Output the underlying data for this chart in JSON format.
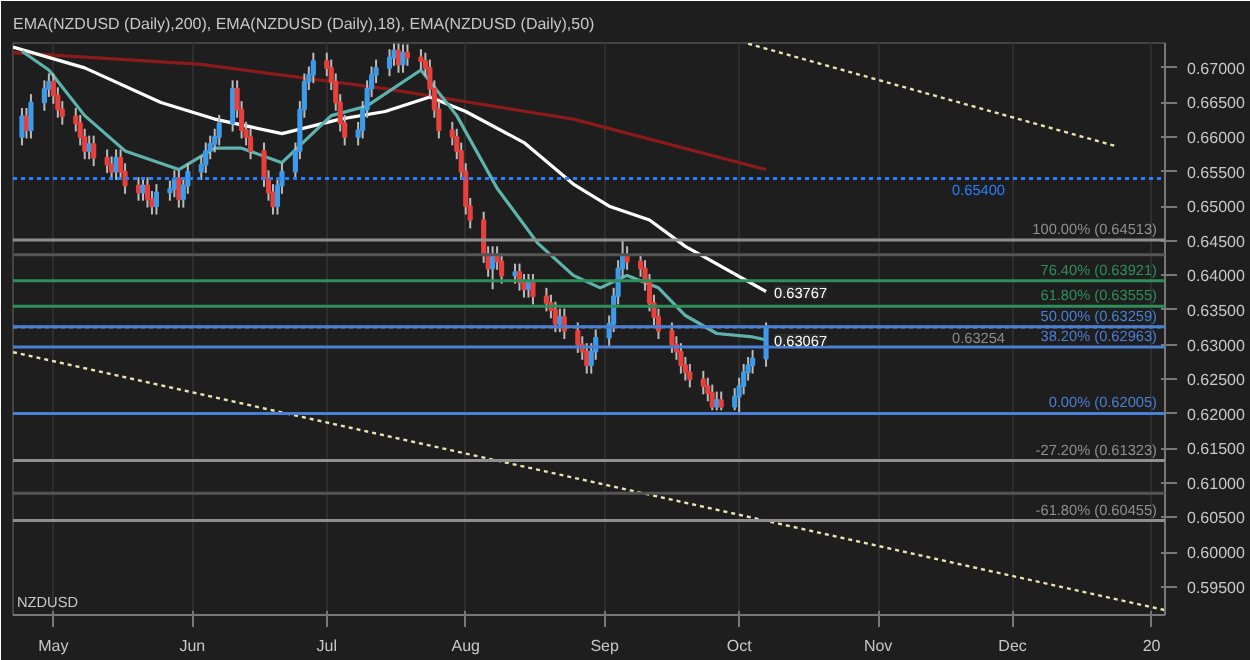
{
  "chart_data": {
    "type": "candlestick",
    "title": "EMA(NZDUSD (Daily),200), EMA(NZDUSD (Daily),18), EMA(NZDUSD (Daily),50)",
    "x": [
      "2019-04-24",
      "2019-04-25",
      "2019-04-26",
      "2019-04-29",
      "2019-04-30",
      "2019-05-01",
      "2019-05-02",
      "2019-05-03",
      "2019-05-06",
      "2019-05-07",
      "2019-05-08",
      "2019-05-09",
      "2019-05-10",
      "2019-05-13",
      "2019-05-14",
      "2019-05-15",
      "2019-05-16",
      "2019-05-17",
      "2019-05-20",
      "2019-05-21",
      "2019-05-22",
      "2019-05-23",
      "2019-05-24",
      "2019-05-27",
      "2019-05-28",
      "2019-05-29",
      "2019-05-30",
      "2019-05-31",
      "2019-06-03",
      "2019-06-04",
      "2019-06-05",
      "2019-06-06",
      "2019-06-07",
      "2019-06-10",
      "2019-06-11",
      "2019-06-12",
      "2019-06-13",
      "2019-06-14",
      "2019-06-17",
      "2019-06-18",
      "2019-06-19",
      "2019-06-20",
      "2019-06-21",
      "2019-06-24",
      "2019-06-25",
      "2019-06-26",
      "2019-06-27",
      "2019-06-28",
      "2019-07-01",
      "2019-07-02",
      "2019-07-03",
      "2019-07-04",
      "2019-07-05",
      "2019-07-08",
      "2019-07-09",
      "2019-07-10",
      "2019-07-11",
      "2019-07-12",
      "2019-07-15",
      "2019-07-16",
      "2019-07-17",
      "2019-07-18",
      "2019-07-19",
      "2019-07-22",
      "2019-07-23",
      "2019-07-24",
      "2019-07-25",
      "2019-07-26",
      "2019-07-29",
      "2019-07-30",
      "2019-07-31",
      "2019-08-01",
      "2019-08-02",
      "2019-08-05",
      "2019-08-06",
      "2019-08-07",
      "2019-08-08",
      "2019-08-09",
      "2019-08-12",
      "2019-08-13",
      "2019-08-14",
      "2019-08-15",
      "2019-08-16",
      "2019-08-19",
      "2019-08-20",
      "2019-08-21",
      "2019-08-22",
      "2019-08-23",
      "2019-08-26",
      "2019-08-27",
      "2019-08-28",
      "2019-08-29",
      "2019-08-30",
      "2019-09-02",
      "2019-09-03",
      "2019-09-04",
      "2019-09-05",
      "2019-09-06",
      "2019-09-09",
      "2019-09-10",
      "2019-09-11",
      "2019-09-12",
      "2019-09-13",
      "2019-09-16",
      "2019-09-17",
      "2019-09-18",
      "2019-09-19",
      "2019-09-20",
      "2019-09-23",
      "2019-09-24",
      "2019-09-25",
      "2019-09-26",
      "2019-09-27",
      "2019-09-30",
      "2019-10-01",
      "2019-10-02",
      "2019-10-03",
      "2019-10-04",
      "2019-10-07"
    ],
    "ohlc": [
      [
        0.66,
        0.6642,
        0.6588,
        0.663
      ],
      [
        0.663,
        0.6642,
        0.6598,
        0.661
      ],
      [
        0.661,
        0.6662,
        0.6598,
        0.665
      ],
      [
        0.665,
        0.6682,
        0.6638,
        0.667
      ],
      [
        0.667,
        0.6692,
        0.6658,
        0.668
      ],
      [
        0.668,
        0.6692,
        0.6648,
        0.666
      ],
      [
        0.666,
        0.6672,
        0.6628,
        0.664
      ],
      [
        0.664,
        0.6652,
        0.6618,
        0.663
      ],
      [
        0.663,
        0.6642,
        0.6608,
        0.662
      ],
      [
        0.662,
        0.6632,
        0.6588,
        0.66
      ],
      [
        0.66,
        0.6612,
        0.6568,
        0.658
      ],
      [
        0.658,
        0.6602,
        0.6568,
        0.659
      ],
      [
        0.659,
        0.6602,
        0.6558,
        0.657
      ],
      [
        0.657,
        0.6582,
        0.6548,
        0.656
      ],
      [
        0.656,
        0.6572,
        0.6538,
        0.655
      ],
      [
        0.655,
        0.6582,
        0.6538,
        0.657
      ],
      [
        0.657,
        0.6582,
        0.6538,
        0.655
      ],
      [
        0.655,
        0.6562,
        0.6518,
        0.653
      ],
      [
        0.653,
        0.6542,
        0.6508,
        0.652
      ],
      [
        0.652,
        0.6542,
        0.6508,
        0.653
      ],
      [
        0.653,
        0.6542,
        0.6498,
        0.651
      ],
      [
        0.651,
        0.6522,
        0.6488,
        0.65
      ],
      [
        0.65,
        0.6532,
        0.6488,
        0.652
      ],
      [
        0.652,
        0.6537,
        0.6508,
        0.6525
      ],
      [
        0.6525,
        0.6552,
        0.6513,
        0.654
      ],
      [
        0.654,
        0.6552,
        0.6498,
        0.651
      ],
      [
        0.651,
        0.6542,
        0.6498,
        0.653
      ],
      [
        0.653,
        0.6562,
        0.6518,
        0.655
      ],
      [
        0.655,
        0.6572,
        0.6538,
        0.656
      ],
      [
        0.656,
        0.6592,
        0.6548,
        0.658
      ],
      [
        0.658,
        0.6602,
        0.6568,
        0.659
      ],
      [
        0.659,
        0.6612,
        0.6578,
        0.66
      ],
      [
        0.66,
        0.6632,
        0.6588,
        0.662
      ],
      [
        0.662,
        0.6682,
        0.6608,
        0.667
      ],
      [
        0.667,
        0.6682,
        0.6628,
        0.664
      ],
      [
        0.664,
        0.6652,
        0.6598,
        0.661
      ],
      [
        0.661,
        0.6622,
        0.6588,
        0.66
      ],
      [
        0.66,
        0.6612,
        0.6568,
        0.658
      ],
      [
        0.658,
        0.6592,
        0.6528,
        0.654
      ],
      [
        0.654,
        0.6552,
        0.6508,
        0.652
      ],
      [
        0.652,
        0.6532,
        0.6488,
        0.65
      ],
      [
        0.65,
        0.6542,
        0.6488,
        0.653
      ],
      [
        0.653,
        0.6562,
        0.6518,
        0.655
      ],
      [
        0.655,
        0.6592,
        0.6538,
        0.658
      ],
      [
        0.658,
        0.6652,
        0.6568,
        0.664
      ],
      [
        0.664,
        0.6692,
        0.6628,
        0.668
      ],
      [
        0.668,
        0.6702,
        0.6668,
        0.669
      ],
      [
        0.669,
        0.6722,
        0.6678,
        0.671
      ],
      [
        0.671,
        0.6722,
        0.6688,
        0.67
      ],
      [
        0.67,
        0.6712,
        0.6668,
        0.668
      ],
      [
        0.668,
        0.6692,
        0.6638,
        0.665
      ],
      [
        0.665,
        0.6662,
        0.6608,
        0.662
      ],
      [
        0.662,
        0.6632,
        0.6588,
        0.66
      ],
      [
        0.66,
        0.6622,
        0.6588,
        0.661
      ],
      [
        0.661,
        0.6652,
        0.6598,
        0.664
      ],
      [
        0.664,
        0.6682,
        0.6628,
        0.667
      ],
      [
        0.667,
        0.6702,
        0.6658,
        0.669
      ],
      [
        0.669,
        0.6712,
        0.6678,
        0.67
      ],
      [
        0.67,
        0.6727,
        0.6688,
        0.6715
      ],
      [
        0.6715,
        0.6735,
        0.6703,
        0.6725
      ],
      [
        0.6725,
        0.6735,
        0.6693,
        0.6705
      ],
      [
        0.6705,
        0.6734,
        0.6693,
        0.6722
      ],
      [
        0.6722,
        0.6734,
        0.6703,
        0.6715
      ],
      [
        0.6715,
        0.6727,
        0.6698,
        0.671
      ],
      [
        0.671,
        0.6722,
        0.6688,
        0.67
      ],
      [
        0.67,
        0.6712,
        0.6658,
        0.667
      ],
      [
        0.667,
        0.6682,
        0.6628,
        0.664
      ],
      [
        0.664,
        0.6652,
        0.6598,
        0.661
      ],
      [
        0.661,
        0.6622,
        0.6588,
        0.66
      ],
      [
        0.66,
        0.6612,
        0.6568,
        0.658
      ],
      [
        0.658,
        0.6592,
        0.6538,
        0.655
      ],
      [
        0.655,
        0.6562,
        0.6488,
        0.65
      ],
      [
        0.65,
        0.6512,
        0.6468,
        0.648
      ],
      [
        0.648,
        0.6492,
        0.6418,
        0.643
      ],
      [
        0.643,
        0.6442,
        0.6398,
        0.641
      ],
      [
        0.641,
        0.6442,
        0.638,
        0.643
      ],
      [
        0.643,
        0.6442,
        0.6408,
        0.642
      ],
      [
        0.642,
        0.6432,
        0.6388,
        0.64
      ],
      [
        0.64,
        0.6417,
        0.6388,
        0.6405
      ],
      [
        0.6405,
        0.6417,
        0.6378,
        0.639
      ],
      [
        0.639,
        0.6402,
        0.6368,
        0.638
      ],
      [
        0.638,
        0.6402,
        0.6368,
        0.639
      ],
      [
        0.639,
        0.6402,
        0.6358,
        0.637
      ],
      [
        0.637,
        0.6382,
        0.6348,
        0.636
      ],
      [
        0.636,
        0.6372,
        0.6338,
        0.635
      ],
      [
        0.635,
        0.6362,
        0.6318,
        0.633
      ],
      [
        0.633,
        0.6352,
        0.6318,
        0.634
      ],
      [
        0.634,
        0.6352,
        0.6308,
        0.632
      ],
      [
        0.632,
        0.6332,
        0.6288,
        0.63
      ],
      [
        0.63,
        0.6312,
        0.6278,
        0.629
      ],
      [
        0.629,
        0.6302,
        0.6258,
        0.627
      ],
      [
        0.627,
        0.6302,
        0.6258,
        0.629
      ],
      [
        0.629,
        0.6322,
        0.6278,
        0.631
      ],
      [
        0.631,
        0.6342,
        0.6298,
        0.633
      ],
      [
        0.633,
        0.6382,
        0.6318,
        0.637
      ],
      [
        0.637,
        0.6422,
        0.6358,
        0.641
      ],
      [
        0.641,
        0.64513,
        0.6398,
        0.643
      ],
      [
        0.643,
        0.6442,
        0.6408,
        0.642
      ],
      [
        0.642,
        0.6432,
        0.6398,
        0.641
      ],
      [
        0.641,
        0.6422,
        0.6378,
        0.639
      ],
      [
        0.639,
        0.6402,
        0.6348,
        0.636
      ],
      [
        0.636,
        0.6372,
        0.6328,
        0.634
      ],
      [
        0.634,
        0.6352,
        0.6308,
        0.632
      ],
      [
        0.632,
        0.6332,
        0.6288,
        0.63
      ],
      [
        0.63,
        0.6312,
        0.6278,
        0.629
      ],
      [
        0.629,
        0.6302,
        0.6258,
        0.627
      ],
      [
        0.627,
        0.6282,
        0.6248,
        0.626
      ],
      [
        0.626,
        0.6272,
        0.6238,
        0.625
      ],
      [
        0.625,
        0.6262,
        0.6228,
        0.624
      ],
      [
        0.624,
        0.6252,
        0.6218,
        0.623
      ],
      [
        0.623,
        0.6242,
        0.6205,
        0.621
      ],
      [
        0.621,
        0.6232,
        0.6205,
        0.622
      ],
      [
        0.622,
        0.6232,
        0.6205,
        0.621
      ],
      [
        0.621,
        0.6237,
        0.6205,
        0.6225
      ],
      [
        0.6225,
        0.6252,
        0.62005,
        0.624
      ],
      [
        0.624,
        0.6272,
        0.6228,
        0.626
      ],
      [
        0.626,
        0.6282,
        0.6248,
        0.627
      ],
      [
        0.627,
        0.6292,
        0.6258,
        0.628
      ],
      [
        0.628,
        0.6332,
        0.6268,
        0.6325
      ]
    ],
    "colors": [
      "#3d9be9",
      "#e8403c",
      "#3d9be9",
      "#3d9be9",
      "#3d9be9",
      "#e8403c",
      "#e8403c",
      "#e8403c",
      "#e8403c",
      "#e8403c",
      "#e8403c",
      "#3d9be9",
      "#e8403c",
      "#e8403c",
      "#e8403c",
      "#3d9be9",
      "#e8403c",
      "#e8403c",
      "#e8403c",
      "#3d9be9",
      "#e8403c",
      "#e8403c",
      "#3d9be9",
      "#3d9be9",
      "#3d9be9",
      "#e8403c",
      "#3d9be9",
      "#3d9be9",
      "#3d9be9",
      "#3d9be9",
      "#3d9be9",
      "#3d9be9",
      "#3d9be9",
      "#3d9be9",
      "#e8403c",
      "#e8403c",
      "#e8403c",
      "#e8403c",
      "#e8403c",
      "#e8403c",
      "#e8403c",
      "#3d9be9",
      "#3d9be9",
      "#3d9be9",
      "#3d9be9",
      "#3d9be9",
      "#3d9be9",
      "#3d9be9",
      "#e8403c",
      "#e8403c",
      "#e8403c",
      "#e8403c",
      "#e8403c",
      "#3d9be9",
      "#3d9be9",
      "#3d9be9",
      "#3d9be9",
      "#3d9be9",
      "#3d9be9",
      "#3d9be9",
      "#e8403c",
      "#3d9be9",
      "#e8403c",
      "#e8403c",
      "#e8403c",
      "#e8403c",
      "#e8403c",
      "#e8403c",
      "#e8403c",
      "#e8403c",
      "#e8403c",
      "#e8403c",
      "#e8403c",
      "#e8403c",
      "#e8403c",
      "#3d9be9",
      "#e8403c",
      "#e8403c",
      "#3d9be9",
      "#e8403c",
      "#e8403c",
      "#3d9be9",
      "#e8403c",
      "#e8403c",
      "#e8403c",
      "#e8403c",
      "#3d9be9",
      "#e8403c",
      "#e8403c",
      "#e8403c",
      "#e8403c",
      "#3d9be9",
      "#3d9be9",
      "#3d9be9",
      "#3d9be9",
      "#3d9be9",
      "#3d9be9",
      "#e8403c",
      "#e8403c",
      "#e8403c",
      "#e8403c",
      "#e8403c",
      "#e8403c",
      "#e8403c",
      "#e8403c",
      "#e8403c",
      "#e8403c",
      "#e8403c",
      "#e8403c",
      "#e8403c",
      "#e8403c",
      "#3d9be9",
      "#e8403c",
      "#3d9be9",
      "#3d9be9",
      "#3d9be9",
      "#3d9be9",
      "#3d9be9",
      "#3d9be9"
    ],
    "series": [
      {
        "type": "line",
        "color": "#8b1a1a",
        "x": [
          "2019-04-22",
          "2019-06-03",
          "2019-07-14",
          "2019-08-25",
          "2019-10-07"
        ],
        "values": [
          0.6722,
          0.6705,
          0.667,
          0.6626,
          0.6553
        ]
      },
      {
        "type": "line",
        "color": "#ffffff",
        "x": [
          "2019-04-22",
          "2019-05-08",
          "2019-05-25",
          "2019-06-06",
          "2019-06-21",
          "2019-07-04",
          "2019-07-14",
          "2019-07-24",
          "2019-08-01",
          "2019-08-14",
          "2019-08-25",
          "2019-09-02",
          "2019-09-11",
          "2019-09-19",
          "2019-10-07"
        ],
        "values": [
          0.673,
          0.67,
          0.665,
          0.6626,
          0.6605,
          0.6626,
          0.6637,
          0.6658,
          0.6637,
          0.6592,
          0.6532,
          0.65,
          0.648,
          0.6442,
          0.63767
        ]
      },
      {
        "type": "line",
        "color": "#5fb3ad",
        "x": [
          "2019-04-24",
          "2019-04-30",
          "2019-05-08",
          "2019-05-17",
          "2019-05-29",
          "2019-06-06",
          "2019-06-12",
          "2019-06-21",
          "2019-07-02",
          "2019-07-10",
          "2019-07-22",
          "2019-07-30",
          "2019-08-08",
          "2019-08-17",
          "2019-08-25",
          "2019-08-31",
          "2019-09-06",
          "2019-09-13",
          "2019-09-19",
          "2019-09-26",
          "2019-10-04",
          "2019-10-07"
        ],
        "values": [
          0.6724,
          0.6697,
          0.6631,
          0.658,
          0.6553,
          0.6584,
          0.6584,
          0.6563,
          0.6631,
          0.6645,
          0.6697,
          0.6631,
          0.6526,
          0.6447,
          0.64,
          0.6382,
          0.64,
          0.6382,
          0.6342,
          0.6316,
          0.6311,
          0.63067
        ]
      },
      {
        "type": "line",
        "color": "#e8e6b0",
        "line_style": "dotted",
        "x": [
          "2019-04-22",
          "2020-01-04"
        ],
        "values": [
          0.6289,
          0.5916
        ]
      },
      {
        "type": "line",
        "color": "#e8e6b0",
        "line_style": "dotted",
        "x": [
          "2019-10-03",
          "2019-12-24"
        ],
        "values": [
          0.6735,
          0.6587
        ]
      }
    ],
    "ref_lines": [
      {
        "axis": "y",
        "value": 0.654,
        "label": "0.65400",
        "color": "#2a7fff",
        "line_style": "dotted"
      },
      {
        "axis": "y",
        "value": 0.63254,
        "label": "0.63254",
        "color": "#8a8a8a",
        "line_style": "dotted"
      },
      {
        "axis": "y",
        "value": 0.643,
        "label": null,
        "color": "#555555"
      },
      {
        "axis": "y",
        "value": 0.6085,
        "label": null,
        "color": "#555555"
      },
      {
        "axis": "y",
        "value": 0.64513,
        "label": "100.00% (0.64513)",
        "color": "#8f8f8f"
      },
      {
        "axis": "y",
        "value": 0.63921,
        "label": "76.40% (0.63921)",
        "color": "#2f8f5b"
      },
      {
        "axis": "y",
        "value": 0.63555,
        "label": "61.80% (0.63555)",
        "color": "#2f8f5b"
      },
      {
        "axis": "y",
        "value": 0.63259,
        "label": "50.00% (0.63259)",
        "color": "#4a7fd6"
      },
      {
        "axis": "y",
        "value": 0.62963,
        "label": "38.20% (0.62963)",
        "color": "#4a7fd6"
      },
      {
        "axis": "y",
        "value": 0.62005,
        "label": "0.00% (0.62005)",
        "color": "#4a7fd6"
      },
      {
        "axis": "y",
        "value": 0.61323,
        "label": "-27.20% (0.61323)",
        "color": "#8f8f8f"
      },
      {
        "axis": "y",
        "value": 0.60455,
        "label": "-61.80% (0.60455)",
        "color": "#8f8f8f"
      }
    ],
    "annotations": [
      "NZDUSD",
      {
        "text": "0.63767",
        "x": "2019-10-07",
        "y": 0.63767
      },
      {
        "text": "0.63067",
        "x": "2019-10-07",
        "y": 0.63067
      }
    ],
    "xlim": [
      "2019-04-22",
      "2020-01-04"
    ],
    "xticks": [
      {
        "value": "2019-05-01",
        "label": "May"
      },
      {
        "value": "2019-06-01",
        "label": "Jun"
      },
      {
        "value": "2019-07-01",
        "label": "Jul"
      },
      {
        "value": "2019-08-01",
        "label": "Aug"
      },
      {
        "value": "2019-09-01",
        "label": "Sep"
      },
      {
        "value": "2019-10-01",
        "label": "Oct"
      },
      {
        "value": "2019-11-01",
        "label": "Nov"
      },
      {
        "value": "2019-12-01",
        "label": "Dec"
      },
      {
        "value": "2020-01-01",
        "label": "20"
      }
    ],
    "ylim": [
      0.5909,
      0.6736
    ],
    "yticks": [
      {
        "value": 0.595,
        "label": "0.59500"
      },
      {
        "value": 0.6,
        "label": "0.60000"
      },
      {
        "value": 0.605,
        "label": "0.60500"
      },
      {
        "value": 0.61,
        "label": "0.61000"
      },
      {
        "value": 0.615,
        "label": "0.61500"
      },
      {
        "value": 0.62,
        "label": "0.62000"
      },
      {
        "value": 0.625,
        "label": "0.62500"
      },
      {
        "value": 0.63,
        "label": "0.63000"
      },
      {
        "value": 0.635,
        "label": "0.63500"
      },
      {
        "value": 0.64,
        "label": "0.64000"
      },
      {
        "value": 0.645,
        "label": "0.64500"
      },
      {
        "value": 0.65,
        "label": "0.65000"
      },
      {
        "value": 0.655,
        "label": "0.65500"
      },
      {
        "value": 0.66,
        "label": "0.66000"
      },
      {
        "value": 0.665,
        "label": "0.66500"
      },
      {
        "value": 0.67,
        "label": "0.67000"
      }
    ],
    "grid": "x"
  }
}
